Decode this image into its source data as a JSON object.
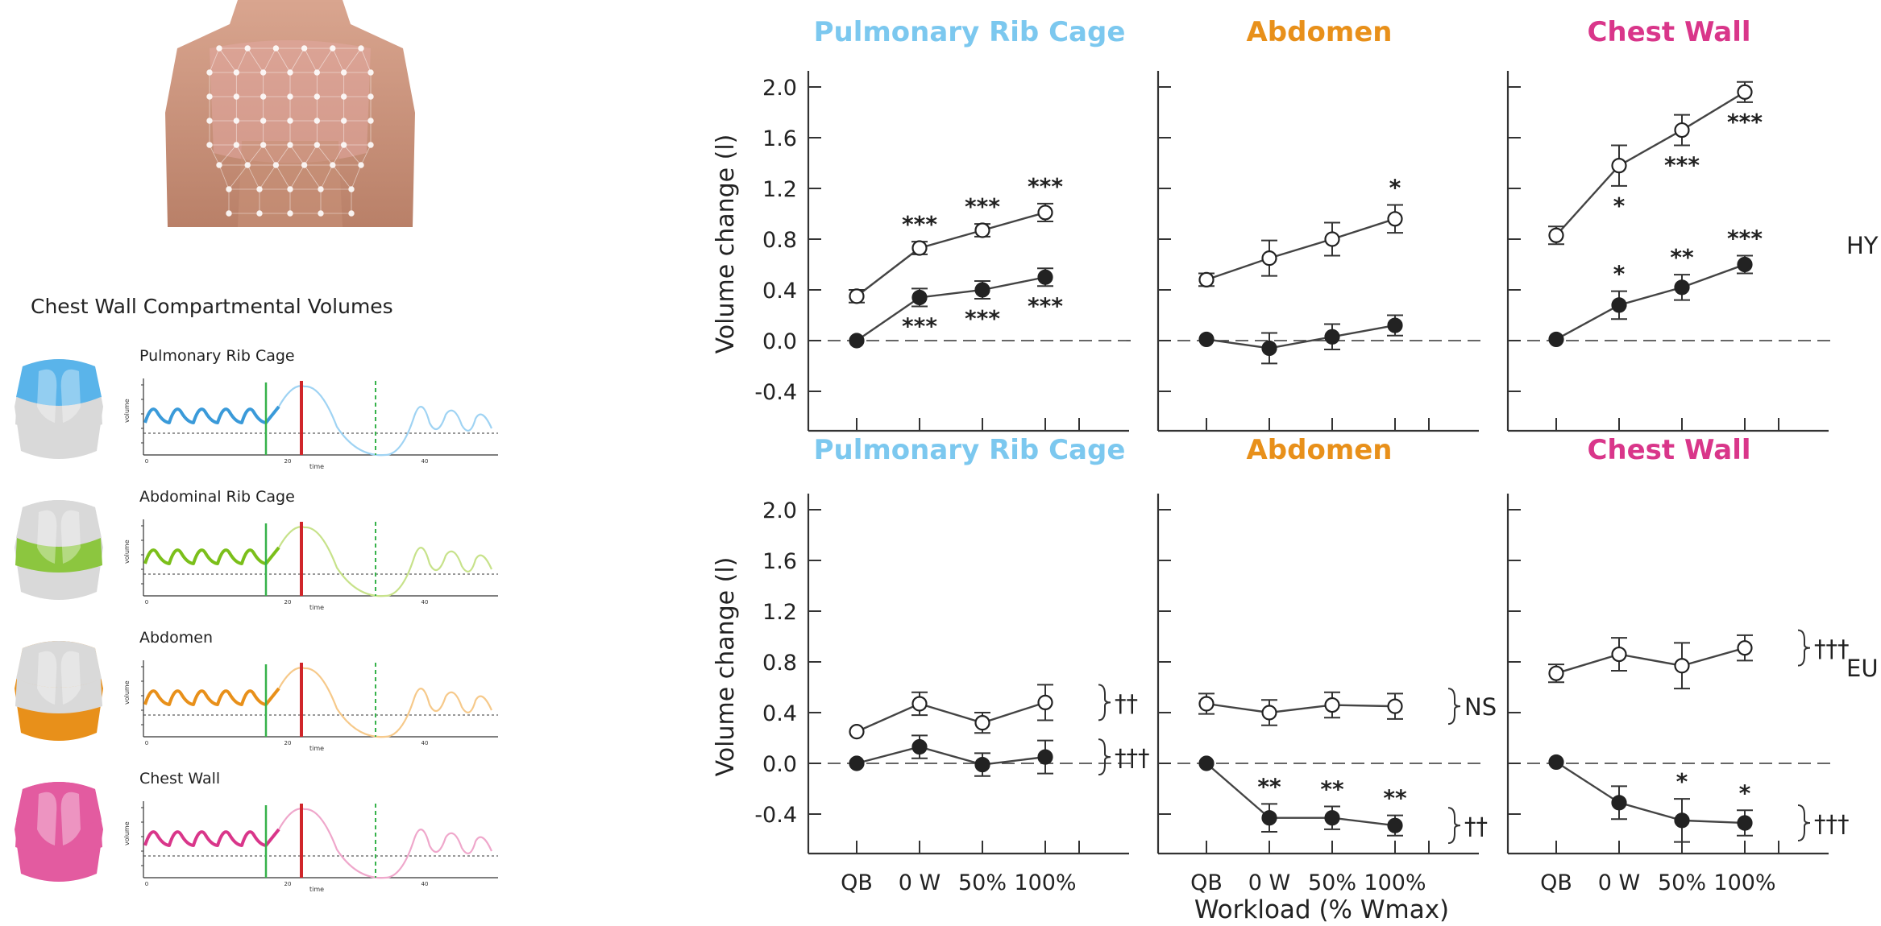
{
  "left_panel": {
    "title": "Chest Wall Compartmental Volumes",
    "traces": [
      {
        "label": "Pulmonary Rib Cage",
        "color": "#3a9ad9",
        "light": "#9fd3f3",
        "icon_hi": "#5ab4ea",
        "icon_mid": "#d9d9d9",
        "icon_lo": "#d9d9d9",
        "ylabel": "volume",
        "xlabel": "time",
        "ticks": [
          "0",
          "20",
          "40"
        ]
      },
      {
        "label": "Abdominal Rib Cage",
        "color": "#7bbf1a",
        "light": "#c7e28a",
        "icon_hi": "#d9d9d9",
        "icon_mid": "#8cc63f",
        "icon_lo": "#d9d9d9",
        "ylabel": "volume",
        "xlabel": "time",
        "ticks": [
          "0",
          "20",
          "40"
        ]
      },
      {
        "label": "Abdomen",
        "color": "#e8901a",
        "light": "#f6c98a",
        "icon_hi": "#d9d9d9",
        "icon_mid": "#d9d9d9",
        "icon_lo": "#e8901a",
        "ylabel": "volume",
        "xlabel": "time",
        "ticks": [
          "0",
          "20",
          "40"
        ]
      },
      {
        "label": "Chest Wall",
        "color": "#d9368a",
        "light": "#efa7cb",
        "icon_hi": "#e35ba0",
        "icon_mid": "#e35ba0",
        "icon_lo": "#e35ba0",
        "ylabel": "volume",
        "xlabel": "time",
        "ticks": [
          "0",
          "20",
          "40"
        ]
      }
    ]
  },
  "colors": {
    "pulmonary": "#7cc8ef",
    "abdomen": "#e8901a",
    "chest_wall": "#d9368a",
    "line": "#444444"
  },
  "chart_data": [
    {
      "type": "line",
      "row": "HY",
      "title": "Pulmonary Rib Cage",
      "title_color": "#7cc8ef",
      "ylabel": "Volume change (l)",
      "ylim": [
        -0.7,
        2.2
      ],
      "yticks": [
        "2.0",
        "1.6",
        "1.2",
        "0.8",
        "0.4",
        "0.0",
        "-0.4"
      ],
      "categories": [
        "QB",
        "0 W",
        "50%",
        "100%"
      ],
      "series": [
        {
          "marker": "open",
          "values": [
            0.35,
            0.73,
            0.87,
            1.01
          ],
          "err": [
            0.05,
            0.05,
            0.05,
            0.07
          ],
          "labels": [
            "",
            "***",
            "***",
            "***"
          ],
          "label_pos": "above"
        },
        {
          "marker": "filled",
          "values": [
            0.0,
            0.34,
            0.4,
            0.5
          ],
          "err": [
            0.0,
            0.07,
            0.07,
            0.07
          ],
          "labels": [
            "",
            "***",
            "***",
            "***"
          ],
          "label_pos": "below"
        }
      ],
      "bracket": null
    },
    {
      "type": "line",
      "row": "HY",
      "title": "Abdomen",
      "title_color": "#e8901a",
      "ylim": [
        -0.7,
        2.2
      ],
      "categories": [
        "QB",
        "0 W",
        "50%",
        "100%"
      ],
      "series": [
        {
          "marker": "open",
          "values": [
            0.48,
            0.65,
            0.8,
            0.96
          ],
          "err": [
            0.05,
            0.14,
            0.13,
            0.11
          ],
          "labels": [
            "",
            "",
            "",
            "*"
          ],
          "label_pos": "above"
        },
        {
          "marker": "filled",
          "values": [
            0.01,
            -0.06,
            0.03,
            0.12
          ],
          "err": [
            0.0,
            0.12,
            0.1,
            0.08
          ],
          "labels": [
            "",
            "",
            "",
            ""
          ],
          "label_pos": "below"
        }
      ],
      "bracket": null
    },
    {
      "type": "line",
      "row": "HY",
      "title": "Chest Wall",
      "title_color": "#d9368a",
      "ylim": [
        -0.7,
        2.2
      ],
      "categories": [
        "QB",
        "0 W",
        "50%",
        "100%"
      ],
      "series": [
        {
          "marker": "open",
          "values": [
            0.83,
            1.38,
            1.66,
            1.96
          ],
          "err": [
            0.07,
            0.16,
            0.12,
            0.08
          ],
          "labels": [
            "",
            "*",
            "***",
            "***"
          ],
          "label_pos": "below"
        },
        {
          "marker": "filled",
          "values": [
            0.01,
            0.28,
            0.42,
            0.6
          ],
          "err": [
            0.0,
            0.11,
            0.1,
            0.07
          ],
          "labels": [
            "",
            "*",
            "**",
            "***"
          ],
          "label_pos": "above"
        }
      ],
      "bracket": null,
      "row_label": "HY"
    },
    {
      "type": "line",
      "row": "EU",
      "title": "Pulmonary Rib Cage",
      "title_color": "#7cc8ef",
      "ylabel": "Volume change (l)",
      "ylim": [
        -0.7,
        2.2
      ],
      "yticks": [
        "2.0",
        "1.6",
        "1.2",
        "0.8",
        "0.4",
        "0.0",
        "-0.4"
      ],
      "categories": [
        "QB",
        "0 W",
        "50%",
        "100%"
      ],
      "series": [
        {
          "marker": "open",
          "values": [
            0.25,
            0.47,
            0.32,
            0.48
          ],
          "err": [
            0.0,
            0.09,
            0.08,
            0.14
          ],
          "labels": [
            "",
            "",
            "",
            ""
          ],
          "label_pos": "above"
        },
        {
          "marker": "filled",
          "values": [
            0.0,
            0.13,
            -0.01,
            0.05
          ],
          "err": [
            0.0,
            0.09,
            0.09,
            0.13
          ],
          "labels": [
            "",
            "",
            "",
            ""
          ],
          "label_pos": "below"
        }
      ],
      "bracket": [
        {
          "label": "††",
          "series": 0
        },
        {
          "label": "†††",
          "series": 1
        }
      ]
    },
    {
      "type": "line",
      "row": "EU",
      "title": "Abdomen",
      "title_color": "#e8901a",
      "ylim": [
        -0.7,
        2.2
      ],
      "categories": [
        "QB",
        "0 W",
        "50%",
        "100%"
      ],
      "series": [
        {
          "marker": "open",
          "values": [
            0.47,
            0.4,
            0.46,
            0.45
          ],
          "err": [
            0.08,
            0.1,
            0.1,
            0.1
          ],
          "labels": [
            "",
            "",
            "",
            ""
          ],
          "label_pos": "above"
        },
        {
          "marker": "filled",
          "values": [
            0.0,
            -0.43,
            -0.43,
            -0.49
          ],
          "err": [
            0.0,
            0.11,
            0.09,
            0.08
          ],
          "labels": [
            "",
            "**",
            "**",
            "**"
          ],
          "label_pos": "above"
        }
      ],
      "bracket": [
        {
          "label": "NS",
          "series": 0
        },
        {
          "label": "††",
          "series": 1
        }
      ]
    },
    {
      "type": "line",
      "row": "EU",
      "title": "Chest Wall",
      "title_color": "#d9368a",
      "ylim": [
        -0.7,
        2.2
      ],
      "categories": [
        "QB",
        "0 W",
        "50%",
        "100%"
      ],
      "series": [
        {
          "marker": "open",
          "values": [
            0.71,
            0.86,
            0.77,
            0.91
          ],
          "err": [
            0.07,
            0.13,
            0.18,
            0.1
          ],
          "labels": [
            "",
            "",
            "",
            ""
          ],
          "label_pos": "above"
        },
        {
          "marker": "filled",
          "values": [
            0.01,
            -0.31,
            -0.45,
            -0.47
          ],
          "err": [
            0.0,
            0.13,
            0.17,
            0.1
          ],
          "labels": [
            "",
            "",
            "*",
            "*"
          ],
          "label_pos": "above"
        }
      ],
      "bracket": [
        {
          "label": "†††",
          "series": 0
        },
        {
          "label": "†††",
          "series": 1
        }
      ],
      "row_label": "EU"
    }
  ],
  "xaxis_label": "Workload (% Wmax)"
}
